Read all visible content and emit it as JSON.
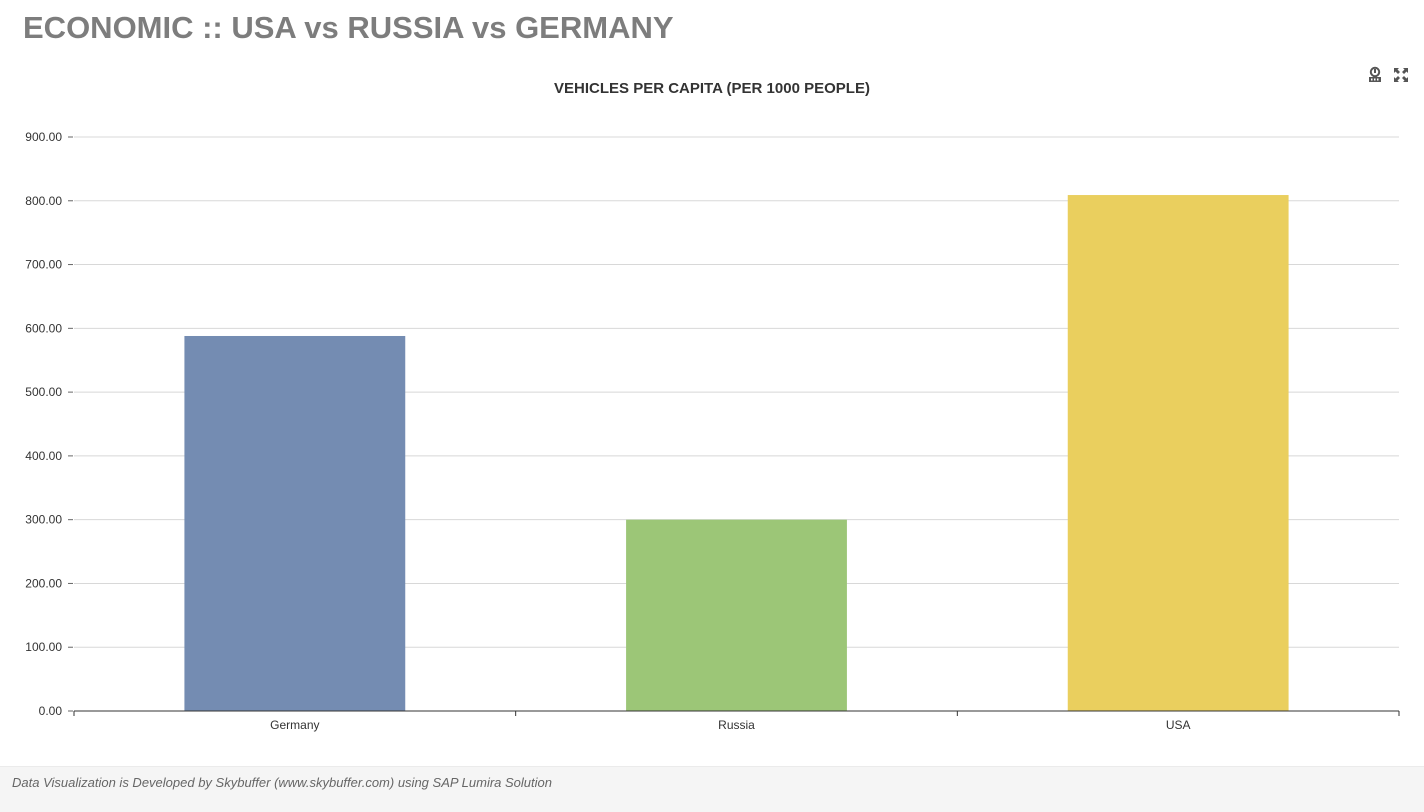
{
  "header": {
    "title": "ECONOMIC :: USA vs RUSSIA vs GERMANY"
  },
  "toolbar": {
    "icons": [
      "filter-icon",
      "expand-icon"
    ]
  },
  "chart_data": {
    "type": "bar",
    "title": "VEHICLES PER CAPITA (PER 1000 PEOPLE)",
    "categories": [
      "Germany",
      "Russia",
      "USA"
    ],
    "values": [
      588,
      300,
      809
    ],
    "colors": [
      "#748cb2",
      "#9cc677",
      "#eacf5e"
    ],
    "ylim": [
      0,
      900
    ],
    "yticks": [
      0,
      100,
      200,
      300,
      400,
      500,
      600,
      700,
      800,
      900
    ],
    "ytick_labels": [
      "0.00",
      "100.00",
      "200.00",
      "300.00",
      "400.00",
      "500.00",
      "600.00",
      "700.00",
      "800.00",
      "900.00"
    ],
    "grid": true,
    "gridline_color": "#d8d8d8",
    "axis_color": "#333333",
    "xlabel": "",
    "ylabel": ""
  },
  "footer": {
    "text": "Data Visualization is Developed by Skybuffer (www.skybuffer.com) using SAP Lumira Solution"
  }
}
